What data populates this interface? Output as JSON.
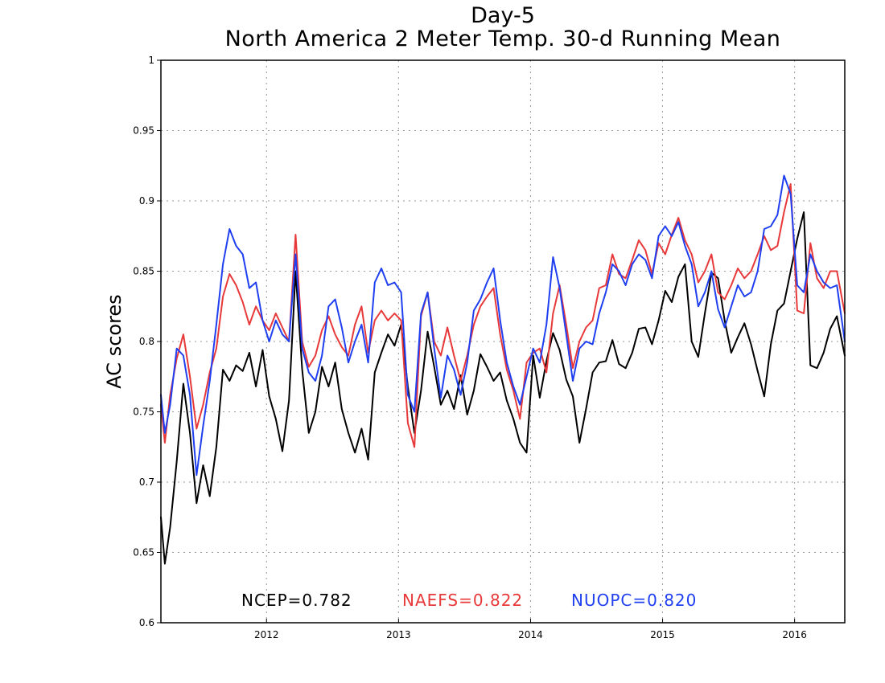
{
  "chart_data": {
    "type": "line",
    "title": "Day-5",
    "subtitle": "North America 2 Meter Temp. 30-d Running Mean",
    "xlabel": "",
    "ylabel": "AC scores",
    "xlim": [
      2011.2,
      2016.38
    ],
    "ylim": [
      0.6,
      1.0
    ],
    "yticks": [
      0.6,
      0.65,
      0.7,
      0.75,
      0.8,
      0.85,
      0.9,
      0.95,
      1
    ],
    "ytick_labels": [
      "0.6",
      "0.65",
      "0.7",
      "0.75",
      "0.8",
      "0.85",
      "0.9",
      "0.95",
      "1"
    ],
    "xticks": [
      2012,
      2013,
      2014,
      2015,
      2016
    ],
    "xtick_labels": [
      "2012",
      "2013",
      "2014",
      "2015",
      "2016"
    ],
    "grid": true,
    "legend_position": "bottom-inside",
    "series": [
      {
        "name": "NCEP",
        "legend_label": "NCEP=0.782",
        "color": "#000000",
        "x": [
          2011.2,
          2011.23,
          2011.27,
          2011.32,
          2011.37,
          2011.42,
          2011.47,
          2011.52,
          2011.57,
          2011.62,
          2011.67,
          2011.72,
          2011.77,
          2011.82,
          2011.87,
          2011.92,
          2011.97,
          2012.02,
          2012.07,
          2012.12,
          2012.17,
          2012.22,
          2012.27,
          2012.32,
          2012.37,
          2012.42,
          2012.47,
          2012.52,
          2012.57,
          2012.62,
          2012.67,
          2012.72,
          2012.77,
          2012.82,
          2012.87,
          2012.92,
          2012.97,
          2013.02,
          2013.07,
          2013.12,
          2013.17,
          2013.22,
          2013.27,
          2013.32,
          2013.37,
          2013.42,
          2013.47,
          2013.52,
          2013.57,
          2013.62,
          2013.67,
          2013.72,
          2013.77,
          2013.82,
          2013.87,
          2013.92,
          2013.97,
          2014.02,
          2014.07,
          2014.12,
          2014.17,
          2014.22,
          2014.27,
          2014.32,
          2014.37,
          2014.42,
          2014.47,
          2014.52,
          2014.57,
          2014.62,
          2014.67,
          2014.72,
          2014.77,
          2014.82,
          2014.87,
          2014.92,
          2014.97,
          2015.02,
          2015.07,
          2015.12,
          2015.17,
          2015.22,
          2015.27,
          2015.32,
          2015.37,
          2015.42,
          2015.47,
          2015.52,
          2015.57,
          2015.62,
          2015.67,
          2015.72,
          2015.77,
          2015.82,
          2015.87,
          2015.92,
          2015.97,
          2016.02,
          2016.07,
          2016.12,
          2016.17,
          2016.22,
          2016.27,
          2016.32,
          2016.38
        ],
        "y": [
          0.675,
          0.642,
          0.668,
          0.715,
          0.77,
          0.735,
          0.685,
          0.712,
          0.69,
          0.725,
          0.78,
          0.772,
          0.783,
          0.779,
          0.792,
          0.768,
          0.794,
          0.761,
          0.745,
          0.722,
          0.758,
          0.85,
          0.78,
          0.735,
          0.75,
          0.782,
          0.768,
          0.785,
          0.752,
          0.735,
          0.721,
          0.738,
          0.716,
          0.778,
          0.792,
          0.805,
          0.797,
          0.812,
          0.768,
          0.735,
          0.765,
          0.807,
          0.782,
          0.755,
          0.765,
          0.752,
          0.776,
          0.748,
          0.765,
          0.791,
          0.782,
          0.772,
          0.778,
          0.758,
          0.745,
          0.728,
          0.721,
          0.79,
          0.76,
          0.786,
          0.806,
          0.794,
          0.773,
          0.761,
          0.728,
          0.752,
          0.778,
          0.785,
          0.786,
          0.801,
          0.784,
          0.781,
          0.792,
          0.809,
          0.81,
          0.798,
          0.815,
          0.836,
          0.828,
          0.846,
          0.855,
          0.8,
          0.789,
          0.82,
          0.849,
          0.845,
          0.815,
          0.792,
          0.803,
          0.813,
          0.798,
          0.779,
          0.761,
          0.798,
          0.822,
          0.827,
          0.85,
          0.873,
          0.892,
          0.783,
          0.781,
          0.792,
          0.809,
          0.818,
          0.79
        ]
      },
      {
        "name": "NAEFS",
        "legend_label": "NAEFS=0.822",
        "color": "#e8393a",
        "x": [
          2011.2,
          2011.23,
          2011.27,
          2011.32,
          2011.37,
          2011.42,
          2011.47,
          2011.52,
          2011.57,
          2011.62,
          2011.67,
          2011.72,
          2011.77,
          2011.82,
          2011.87,
          2011.92,
          2011.97,
          2012.02,
          2012.07,
          2012.12,
          2012.17,
          2012.22,
          2012.27,
          2012.32,
          2012.37,
          2012.42,
          2012.47,
          2012.52,
          2012.57,
          2012.62,
          2012.67,
          2012.72,
          2012.77,
          2012.82,
          2012.87,
          2012.92,
          2012.97,
          2013.02,
          2013.07,
          2013.12,
          2013.17,
          2013.22,
          2013.27,
          2013.32,
          2013.37,
          2013.42,
          2013.47,
          2013.52,
          2013.57,
          2013.62,
          2013.67,
          2013.72,
          2013.77,
          2013.82,
          2013.87,
          2013.92,
          2013.97,
          2014.02,
          2014.07,
          2014.12,
          2014.17,
          2014.22,
          2014.27,
          2014.32,
          2014.37,
          2014.42,
          2014.47,
          2014.52,
          2014.57,
          2014.62,
          2014.67,
          2014.72,
          2014.77,
          2014.82,
          2014.87,
          2014.92,
          2014.97,
          2015.02,
          2015.07,
          2015.12,
          2015.17,
          2015.22,
          2015.27,
          2015.32,
          2015.37,
          2015.42,
          2015.47,
          2015.52,
          2015.57,
          2015.62,
          2015.67,
          2015.72,
          2015.77,
          2015.82,
          2015.87,
          2015.92,
          2015.97,
          2016.02,
          2016.07,
          2016.12,
          2016.17,
          2016.22,
          2016.27,
          2016.32,
          2016.38
        ],
        "y": [
          0.755,
          0.728,
          0.762,
          0.788,
          0.805,
          0.775,
          0.738,
          0.755,
          0.778,
          0.795,
          0.832,
          0.848,
          0.84,
          0.828,
          0.812,
          0.825,
          0.815,
          0.808,
          0.82,
          0.81,
          0.8,
          0.876,
          0.8,
          0.782,
          0.79,
          0.808,
          0.818,
          0.805,
          0.796,
          0.79,
          0.812,
          0.825,
          0.792,
          0.815,
          0.822,
          0.815,
          0.82,
          0.815,
          0.742,
          0.725,
          0.818,
          0.835,
          0.8,
          0.79,
          0.81,
          0.79,
          0.772,
          0.79,
          0.812,
          0.825,
          0.832,
          0.838,
          0.805,
          0.78,
          0.765,
          0.745,
          0.785,
          0.792,
          0.795,
          0.778,
          0.82,
          0.84,
          0.812,
          0.781,
          0.8,
          0.81,
          0.815,
          0.838,
          0.84,
          0.862,
          0.848,
          0.845,
          0.858,
          0.872,
          0.865,
          0.848,
          0.87,
          0.862,
          0.876,
          0.888,
          0.872,
          0.862,
          0.842,
          0.85,
          0.862,
          0.835,
          0.83,
          0.84,
          0.852,
          0.845,
          0.85,
          0.862,
          0.875,
          0.865,
          0.868,
          0.892,
          0.912,
          0.822,
          0.82,
          0.87,
          0.845,
          0.838,
          0.85,
          0.85,
          0.82
        ]
      },
      {
        "name": "NUOPC",
        "legend_label": "NUOPC=0.820",
        "color": "#1f3ff0",
        "x": [
          2011.2,
          2011.23,
          2011.27,
          2011.32,
          2011.37,
          2011.42,
          2011.47,
          2011.52,
          2011.57,
          2011.62,
          2011.67,
          2011.72,
          2011.77,
          2011.82,
          2011.87,
          2011.92,
          2011.97,
          2012.02,
          2012.07,
          2012.12,
          2012.17,
          2012.22,
          2012.27,
          2012.32,
          2012.37,
          2012.42,
          2012.47,
          2012.52,
          2012.57,
          2012.62,
          2012.67,
          2012.72,
          2012.77,
          2012.82,
          2012.87,
          2012.92,
          2012.97,
          2013.02,
          2013.07,
          2013.12,
          2013.17,
          2013.22,
          2013.27,
          2013.32,
          2013.37,
          2013.42,
          2013.47,
          2013.52,
          2013.57,
          2013.62,
          2013.67,
          2013.72,
          2013.77,
          2013.82,
          2013.87,
          2013.92,
          2013.97,
          2014.02,
          2014.07,
          2014.12,
          2014.17,
          2014.22,
          2014.27,
          2014.32,
          2014.37,
          2014.42,
          2014.47,
          2014.52,
          2014.57,
          2014.62,
          2014.67,
          2014.72,
          2014.77,
          2014.82,
          2014.87,
          2014.92,
          2014.97,
          2015.02,
          2015.07,
          2015.12,
          2015.17,
          2015.22,
          2015.27,
          2015.32,
          2015.37,
          2015.42,
          2015.47,
          2015.52,
          2015.57,
          2015.62,
          2015.67,
          2015.72,
          2015.77,
          2015.82,
          2015.87,
          2015.92,
          2015.97,
          2016.02,
          2016.07,
          2016.12,
          2016.17,
          2016.22,
          2016.27,
          2016.32,
          2016.38
        ],
        "y": [
          0.762,
          0.735,
          0.755,
          0.795,
          0.79,
          0.762,
          0.705,
          0.74,
          0.772,
          0.812,
          0.855,
          0.88,
          0.868,
          0.862,
          0.838,
          0.842,
          0.815,
          0.8,
          0.815,
          0.805,
          0.8,
          0.862,
          0.795,
          0.778,
          0.772,
          0.79,
          0.825,
          0.83,
          0.81,
          0.785,
          0.8,
          0.812,
          0.785,
          0.842,
          0.852,
          0.84,
          0.842,
          0.835,
          0.762,
          0.75,
          0.82,
          0.835,
          0.795,
          0.76,
          0.79,
          0.78,
          0.762,
          0.785,
          0.822,
          0.83,
          0.842,
          0.852,
          0.815,
          0.785,
          0.768,
          0.755,
          0.775,
          0.795,
          0.785,
          0.812,
          0.86,
          0.838,
          0.805,
          0.772,
          0.795,
          0.8,
          0.798,
          0.82,
          0.835,
          0.855,
          0.85,
          0.84,
          0.855,
          0.862,
          0.858,
          0.845,
          0.875,
          0.882,
          0.875,
          0.885,
          0.868,
          0.855,
          0.825,
          0.835,
          0.85,
          0.823,
          0.81,
          0.825,
          0.84,
          0.832,
          0.835,
          0.85,
          0.88,
          0.882,
          0.89,
          0.918,
          0.905,
          0.84,
          0.835,
          0.862,
          0.85,
          0.842,
          0.838,
          0.84,
          0.8
        ]
      }
    ]
  }
}
